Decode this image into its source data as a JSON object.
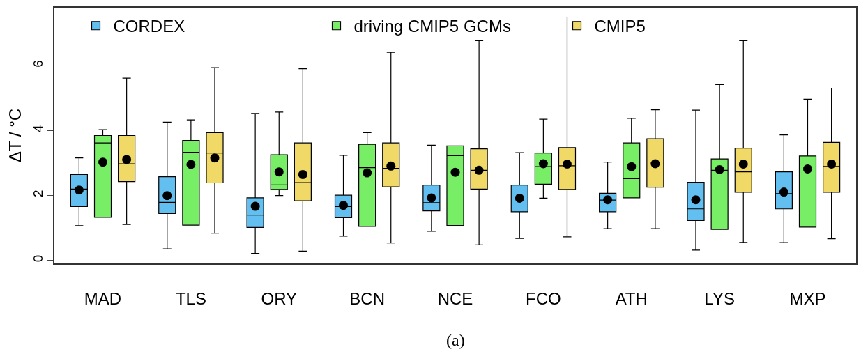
{
  "chart_data": {
    "type": "box",
    "ylabel": "ΔT / °C",
    "categories": [
      "MAD",
      "TLS",
      "ORY",
      "BCN",
      "NCE",
      "FCO",
      "ATH",
      "LYS",
      "MXP"
    ],
    "ylim": [
      -0.09,
      7.79
    ],
    "yticks": [
      0,
      2,
      4,
      6
    ],
    "legend": "top left",
    "marker": "circle",
    "annotations": [
      "(a)"
    ],
    "series": [
      {
        "name": "CORDEX",
        "color": "#63bff0",
        "boxes": [
          {
            "low": 1.07,
            "q1": 1.66,
            "median": 2.2,
            "q3": 2.65,
            "high": 3.16,
            "mean": 2.17
          },
          {
            "low": 0.36,
            "q1": 1.45,
            "median": 1.79,
            "q3": 2.58,
            "high": 4.26,
            "mean": 2.0
          },
          {
            "low": 0.22,
            "q1": 1.02,
            "median": 1.4,
            "q3": 1.93,
            "high": 4.53,
            "mean": 1.67
          },
          {
            "low": 0.75,
            "q1": 1.32,
            "median": 1.66,
            "q3": 2.01,
            "high": 3.24,
            "mean": 1.7
          },
          {
            "low": 0.9,
            "q1": 1.53,
            "median": 1.78,
            "q3": 2.32,
            "high": 3.55,
            "mean": 1.93
          },
          {
            "low": 0.68,
            "q1": 1.5,
            "median": 1.96,
            "q3": 2.32,
            "high": 3.32,
            "mean": 1.92
          },
          {
            "low": 0.98,
            "q1": 1.5,
            "median": 1.86,
            "q3": 2.07,
            "high": 3.03,
            "mean": 1.87
          },
          {
            "low": 0.32,
            "q1": 1.23,
            "median": 1.59,
            "q3": 2.41,
            "high": 4.63,
            "mean": 1.87
          },
          {
            "low": 0.55,
            "q1": 1.59,
            "median": 2.06,
            "q3": 2.73,
            "high": 3.87,
            "mean": 2.11
          }
        ]
      },
      {
        "name": "driving CMIP5 GCMs",
        "color": "#77ee66",
        "boxes": [
          {
            "low": 1.33,
            "q1": 1.33,
            "median": 3.62,
            "q3": 3.85,
            "high": 4.03,
            "mean": 3.03
          },
          {
            "low": 1.09,
            "q1": 1.09,
            "median": 3.33,
            "q3": 3.7,
            "high": 4.33,
            "mean": 2.96
          },
          {
            "low": 2.0,
            "q1": 2.19,
            "median": 2.33,
            "q3": 3.26,
            "high": 4.57,
            "mean": 2.73
          },
          {
            "low": 1.05,
            "q1": 1.05,
            "median": 2.86,
            "q3": 3.58,
            "high": 3.94,
            "mean": 2.7
          },
          {
            "low": 1.08,
            "q1": 1.08,
            "median": 3.23,
            "q3": 3.53,
            "high": 3.53,
            "mean": 2.72
          },
          {
            "low": 1.92,
            "q1": 2.35,
            "median": 2.89,
            "q3": 3.31,
            "high": 4.35,
            "mean": 2.98
          },
          {
            "low": 1.93,
            "q1": 1.93,
            "median": 2.52,
            "q3": 3.62,
            "high": 4.38,
            "mean": 2.89
          },
          {
            "low": 0.96,
            "q1": 0.96,
            "median": 2.78,
            "q3": 3.13,
            "high": 5.42,
            "mean": 2.8
          },
          {
            "low": 1.03,
            "q1": 1.03,
            "median": 2.97,
            "q3": 3.22,
            "high": 4.97,
            "mean": 2.82
          }
        ]
      },
      {
        "name": "CMIP5",
        "color": "#f0d966",
        "boxes": [
          {
            "low": 1.11,
            "q1": 2.43,
            "median": 2.98,
            "q3": 3.85,
            "high": 5.62,
            "mean": 3.11
          },
          {
            "low": 0.84,
            "q1": 2.39,
            "median": 3.31,
            "q3": 3.94,
            "high": 5.94,
            "mean": 3.16
          },
          {
            "low": 0.29,
            "q1": 1.84,
            "median": 2.4,
            "q3": 3.62,
            "high": 5.91,
            "mean": 2.65
          },
          {
            "low": 0.54,
            "q1": 2.27,
            "median": 2.84,
            "q3": 3.62,
            "high": 6.41,
            "mean": 2.91
          },
          {
            "low": 0.48,
            "q1": 2.2,
            "median": 2.78,
            "q3": 3.44,
            "high": 6.77,
            "mean": 2.78
          },
          {
            "low": 0.73,
            "q1": 2.19,
            "median": 2.92,
            "q3": 3.48,
            "high": 7.5,
            "mean": 2.97
          },
          {
            "low": 0.98,
            "q1": 2.26,
            "median": 2.97,
            "q3": 3.75,
            "high": 4.64,
            "mean": 2.98
          },
          {
            "low": 0.56,
            "q1": 2.1,
            "median": 2.73,
            "q3": 3.46,
            "high": 6.77,
            "mean": 2.97
          },
          {
            "low": 0.67,
            "q1": 2.1,
            "median": 2.9,
            "q3": 3.64,
            "high": 5.31,
            "mean": 2.97
          }
        ]
      }
    ]
  }
}
